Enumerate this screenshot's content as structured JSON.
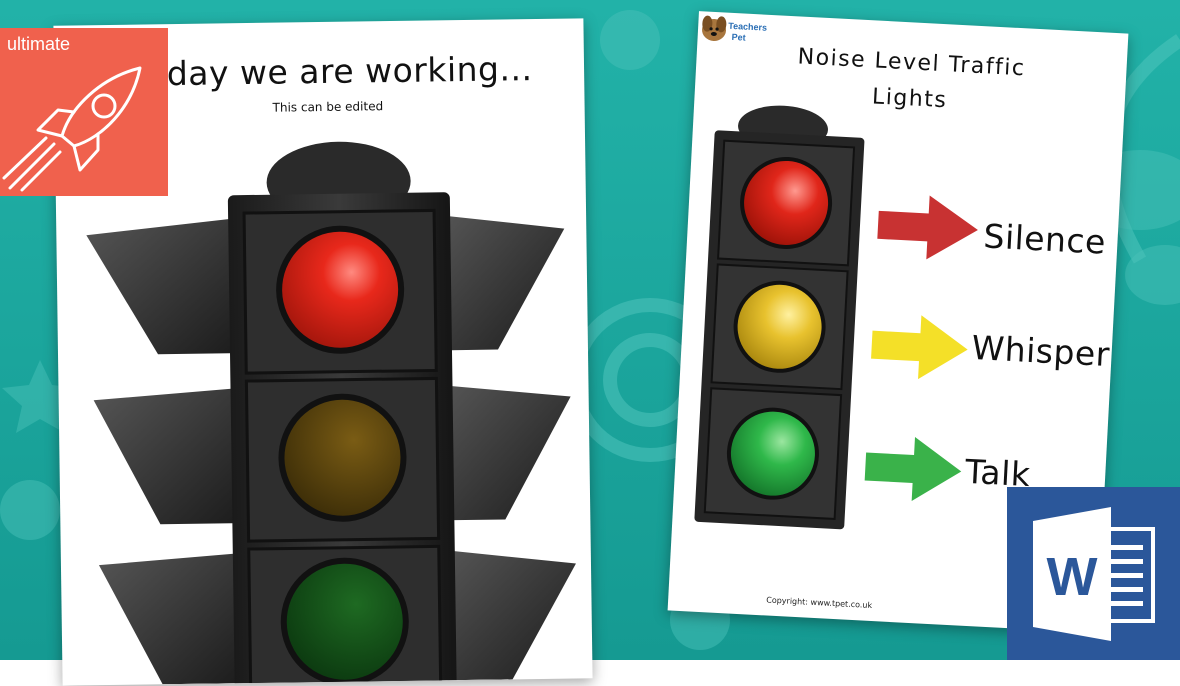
{
  "colors": {
    "background": "#1ba89f",
    "ultimate_badge": "#f0614d",
    "word_badge": "#2b579a",
    "red_light": "#e0261a",
    "amber_light": "#e8c22e",
    "green_light": "#2fb84a",
    "red_arrow": "#c83232",
    "yellow_arrow": "#f4e028",
    "green_arrow": "#3ab24a"
  },
  "badge": {
    "label": "ultimate",
    "icon": "rocket-icon"
  },
  "word_badge": {
    "letter": "W",
    "icon": "microsoft-word-icon"
  },
  "left_sheet": {
    "title": "oday we are working...",
    "subtitle": "This can be edited"
  },
  "right_sheet": {
    "title_line1": "Noise Level Traffic",
    "title_line2": "Lights",
    "levels": [
      {
        "label": "Silence",
        "color": "red"
      },
      {
        "label": "Whisper",
        "color": "yellow"
      },
      {
        "label": "Talk",
        "color": "green"
      }
    ],
    "copyright": "Copyright: www.tpet.co.uk",
    "logo": "Teachers Pet"
  }
}
